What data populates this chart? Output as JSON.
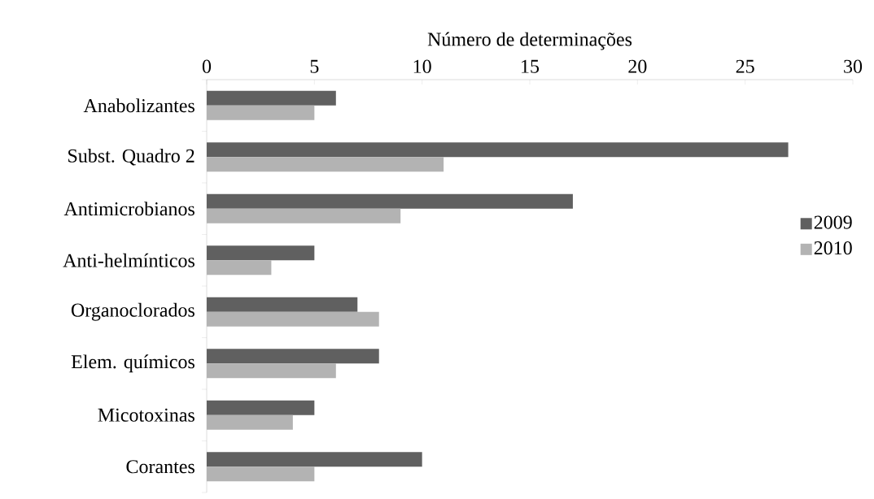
{
  "chart_data": {
    "type": "bar",
    "orientation": "horizontal",
    "xlabel": "Número de determinações",
    "categories": [
      "Anabolizantes",
      "Subst. Quadro 2",
      "Antimicrobianos",
      "Anti-helmínticos",
      "Organoclorados",
      "Elem. químicos",
      "Micotoxinas",
      "Corantes"
    ],
    "series": [
      {
        "name": "2009",
        "color": "#606060",
        "values": [
          6,
          27,
          17,
          5,
          7,
          8,
          5,
          10
        ]
      },
      {
        "name": "2010",
        "color": "#b3b3b3",
        "values": [
          5,
          11,
          9,
          3,
          8,
          6,
          4,
          5
        ]
      }
    ],
    "xlim": [
      0,
      30
    ],
    "xticks": [
      0,
      5,
      10,
      15,
      20,
      25,
      30
    ],
    "grid": false,
    "legend": "right"
  }
}
